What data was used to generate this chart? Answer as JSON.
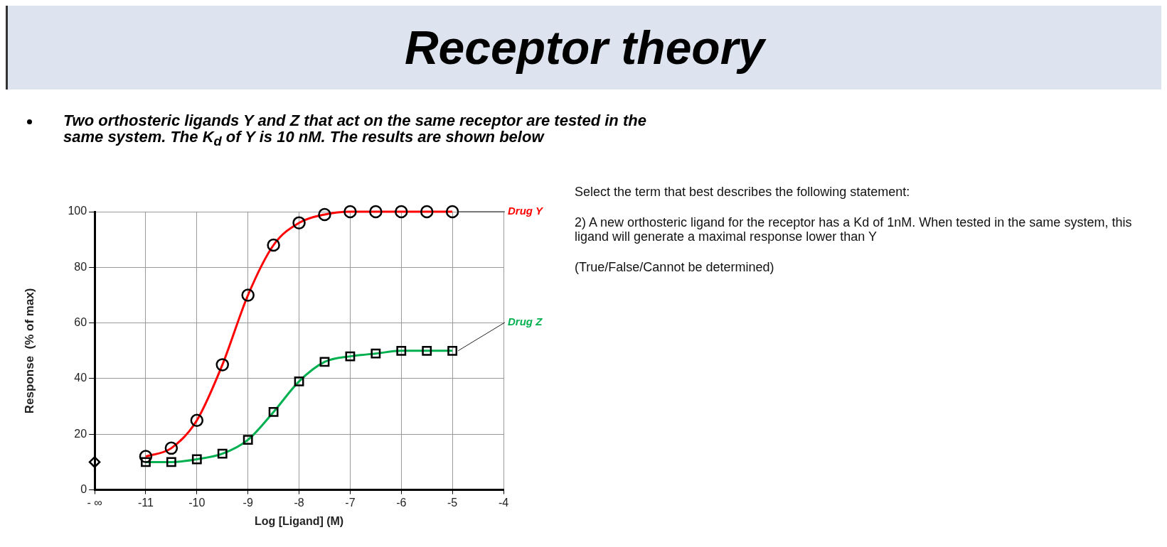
{
  "chart_data": {
    "type": "line",
    "title": "Receptor theory",
    "subtitle": "Two orthosteric ligands Y and Z that act on the same receptor are tested in the same system.  The K$_{d}$ of Y is 10 nM.  The results are shown below",
    "xlabel": "Log [Ligand] (M)",
    "ylabel": "Response  (% of max)",
    "annotations": [
      "Select the term that best describes the following statement:",
      "2) A new orthosteric ligand for the receptor has a Kd of 1nM. When tested in the same system, this ligand will generate a maximal response lower than Y",
      "(True/False/Cannot be determined)"
    ],
    "x": [
      -11,
      -10.5,
      -10,
      -9.5,
      -9,
      -8.5,
      -8,
      -7.5,
      -7,
      -6.5,
      -6,
      -5.5,
      -5
    ],
    "series": [
      {
        "name": "Drug Y",
        "color": "#ff0000",
        "marker": "circle",
        "values": [
          12,
          15,
          25,
          45,
          70,
          88,
          96,
          99,
          100,
          100,
          100,
          100,
          100
        ]
      },
      {
        "name": "Drug Z",
        "color": "#00b050",
        "marker": "square",
        "values": [
          10,
          10,
          11,
          13,
          18,
          28,
          39,
          46,
          48,
          49,
          50,
          50,
          50
        ]
      },
      {
        "type": "scatter",
        "color": "#000000",
        "marker": "diamond",
        "x": [
          -12
        ],
        "values": [
          10
        ]
      }
    ],
    "xlim": [
      -12,
      -4
    ],
    "xticks": [
      {
        "value": -12,
        "label": "- ∞"
      },
      -11,
      -10,
      -9,
      -8,
      -7,
      -6,
      -5,
      -4
    ],
    "ylim": [
      0,
      100
    ],
    "yticks": [
      0,
      20,
      40,
      60,
      80,
      100
    ],
    "grid": true,
    "legend": false
  }
}
